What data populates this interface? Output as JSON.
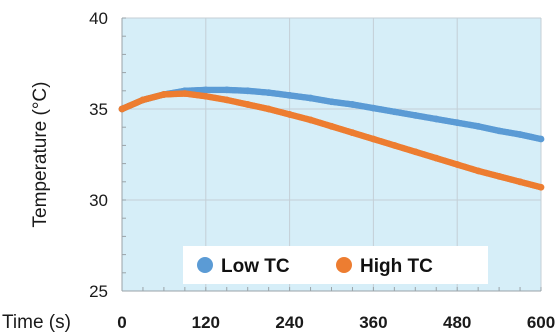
{
  "chart_data": {
    "type": "scatter",
    "title": "",
    "xlabel": "Time (s)",
    "ylabel": "Temperature (°C)",
    "xlim": [
      0,
      600
    ],
    "ylim": [
      25,
      40
    ],
    "xticks": [
      "0",
      "120",
      "240",
      "360",
      "480",
      "600"
    ],
    "yticks": [
      "25",
      "30",
      "35",
      "40"
    ],
    "grid": true,
    "legend_position": "bottom-center",
    "plot_background": "#d6eef8",
    "series": [
      {
        "name": "Low TC",
        "color": "#5b9bd5",
        "x": [
          0,
          30,
          60,
          90,
          120,
          150,
          180,
          210,
          240,
          270,
          300,
          330,
          360,
          390,
          420,
          450,
          480,
          510,
          540,
          570,
          600
        ],
        "y": [
          35.0,
          35.5,
          35.8,
          36.0,
          36.05,
          36.05,
          36.0,
          35.9,
          35.75,
          35.6,
          35.4,
          35.25,
          35.05,
          34.85,
          34.65,
          34.45,
          34.25,
          34.05,
          33.8,
          33.6,
          33.35
        ]
      },
      {
        "name": "High TC",
        "color": "#ed7d31",
        "x": [
          0,
          30,
          60,
          90,
          120,
          150,
          180,
          210,
          240,
          270,
          300,
          330,
          360,
          390,
          420,
          450,
          480,
          510,
          540,
          570,
          600
        ],
        "y": [
          35.0,
          35.5,
          35.8,
          35.85,
          35.7,
          35.5,
          35.25,
          35.0,
          34.7,
          34.4,
          34.05,
          33.7,
          33.35,
          33.0,
          32.65,
          32.3,
          31.95,
          31.6,
          31.3,
          31.0,
          30.7
        ]
      }
    ]
  }
}
